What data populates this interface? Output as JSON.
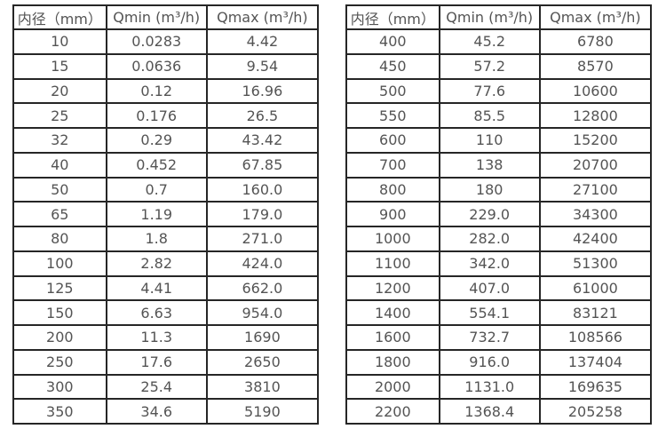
{
  "page": {
    "background": "#ffffff",
    "table_border_color": "#262626",
    "text_color": "#545454"
  },
  "chart_data": [
    {
      "type": "table",
      "columns": [
        "内径（mm）",
        "Qmin (m³/h)",
        "Qmax (m³/h)"
      ],
      "rows": [
        [
          "10",
          "0.0283",
          "4.42"
        ],
        [
          "15",
          "0.0636",
          "9.54"
        ],
        [
          "20",
          "0.12",
          "16.96"
        ],
        [
          "25",
          "0.176",
          "26.5"
        ],
        [
          "32",
          "0.29",
          "43.42"
        ],
        [
          "40",
          "0.452",
          "67.85"
        ],
        [
          "50",
          "0.7",
          "160.0"
        ],
        [
          "65",
          "1.19",
          "179.0"
        ],
        [
          "80",
          "1.8",
          "271.0"
        ],
        [
          "100",
          "2.82",
          "424.0"
        ],
        [
          "125",
          "4.41",
          "662.0"
        ],
        [
          "150",
          "6.63",
          "954.0"
        ],
        [
          "200",
          "11.3",
          "1690"
        ],
        [
          "250",
          "17.6",
          "2650"
        ],
        [
          "300",
          "25.4",
          "3810"
        ],
        [
          "350",
          "34.6",
          "5190"
        ]
      ]
    },
    {
      "type": "table",
      "columns": [
        "内径（mm）",
        "Qmin (m³/h)",
        "Qmax (m³/h)"
      ],
      "rows": [
        [
          "400",
          "45.2",
          "6780"
        ],
        [
          "450",
          "57.2",
          "8570"
        ],
        [
          "500",
          "77.6",
          "10600"
        ],
        [
          "550",
          "85.5",
          "12800"
        ],
        [
          "600",
          "110",
          "15200"
        ],
        [
          "700",
          "138",
          "20700"
        ],
        [
          "800",
          "180",
          "27100"
        ],
        [
          "900",
          "229.0",
          "34300"
        ],
        [
          "1000",
          "282.0",
          "42400"
        ],
        [
          "1100",
          "342.0",
          "51300"
        ],
        [
          "1200",
          "407.0",
          "61000"
        ],
        [
          "1400",
          "554.1",
          "83121"
        ],
        [
          "1600",
          "732.7",
          "108566"
        ],
        [
          "1800",
          "916.0",
          "137404"
        ],
        [
          "2000",
          "1131.0",
          "169635"
        ],
        [
          "2200",
          "1368.4",
          "205258"
        ]
      ]
    }
  ]
}
